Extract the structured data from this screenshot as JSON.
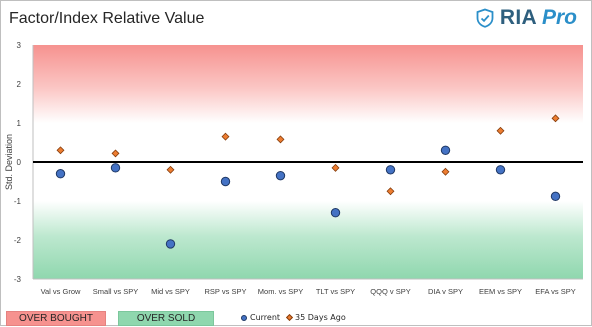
{
  "header": {
    "title": "Factor/Index Relative Value",
    "brand_text": "RIA",
    "brand_accent": "Pro"
  },
  "legend": {
    "overbought_label": "OVER BOUGHT",
    "oversold_label": "OVER SOLD",
    "current_label": "Current",
    "ago_label": "35 Days Ago"
  },
  "colors": {
    "overbought": "#f6928f",
    "oversold": "#8fd7ae",
    "current": "#4472c4",
    "ago": "#ed7d31"
  },
  "chart_data": {
    "type": "scatter",
    "title": "Factor/Index Relative Value",
    "ylabel": "Std. Deviation",
    "xlabel": "",
    "ylim": [
      -3,
      3
    ],
    "yticks": [
      "3",
      "2",
      "1",
      "0",
      "-1",
      "-2",
      "-3"
    ],
    "categories": [
      "Val vs Grow",
      "Small vs SPY",
      "Mid vs SPY",
      "RSP vs SPY",
      "Mom. vs SPY",
      "TLT vs SPY",
      "QQQ v SPY",
      "DIA v SPY",
      "EEM vs SPY",
      "EFA vs SPY"
    ],
    "series": [
      {
        "name": "Current",
        "marker": "circle",
        "values": [
          -0.3,
          -0.15,
          -2.1,
          -0.5,
          -0.35,
          -1.3,
          -0.2,
          0.3,
          -0.2,
          -0.88
        ]
      },
      {
        "name": "35 Days Ago",
        "marker": "diamond",
        "values": [
          0.3,
          0.22,
          -0.2,
          0.65,
          0.58,
          -0.15,
          -0.75,
          -0.25,
          0.8,
          1.12
        ]
      }
    ],
    "zones": [
      {
        "label": "OVER BOUGHT",
        "from": 1,
        "to": 3
      },
      {
        "label": "OVER SOLD",
        "from": -3,
        "to": -1
      }
    ],
    "grid": false,
    "legend_position": "bottom"
  }
}
